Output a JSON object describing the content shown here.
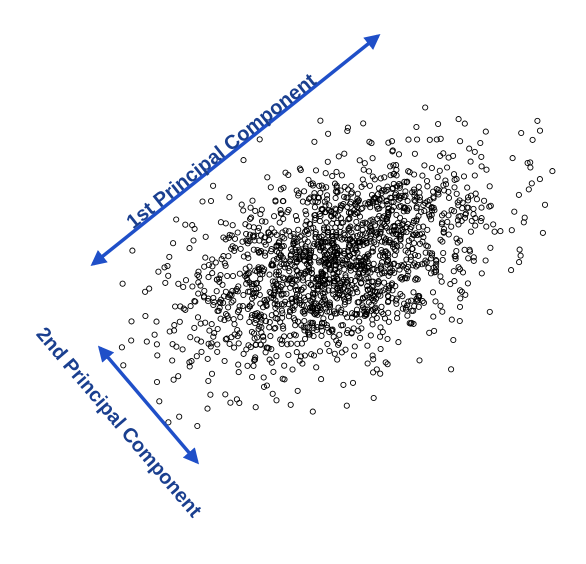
{
  "labels": {
    "pc1": "1st Principal Component",
    "pc2": "2nd Principal Component"
  },
  "colors": {
    "arrow": "#1f4fc8",
    "label": "#1a3f8f",
    "points": "#000000",
    "background": "#ffffff"
  },
  "scatter": {
    "marker": "open-circle",
    "approx_point_count": 1800,
    "distribution": "bivariate-normal",
    "elongation_direction": "along-1st-principal-component"
  }
}
